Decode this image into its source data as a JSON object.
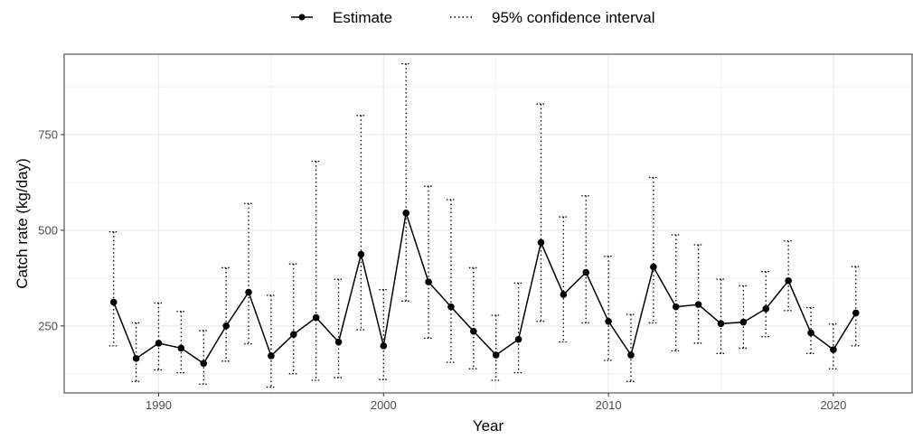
{
  "chart_data": {
    "type": "line",
    "title": "",
    "xlabel": "Year",
    "ylabel": "Catch rate (kg/day)",
    "xlim": [
      1985.8,
      2023.5
    ],
    "ylim": [
      75,
      960
    ],
    "x_ticks": [
      1990,
      2000,
      2010,
      2020
    ],
    "y_ticks": [
      250,
      500,
      750
    ],
    "grid": true,
    "legend_position": "top",
    "series": [
      {
        "name": "Estimate",
        "color": "#000000",
        "style": "line-with-points",
        "x": [
          1988,
          1989,
          1990,
          1991,
          1992,
          1993,
          1994,
          1995,
          1996,
          1997,
          1998,
          1999,
          2000,
          2001,
          2002,
          2003,
          2004,
          2005,
          2006,
          2007,
          2008,
          2009,
          2010,
          2011,
          2012,
          2013,
          2014,
          2015,
          2016,
          2017,
          2018,
          2019,
          2020,
          2021
        ],
        "values": [
          312,
          165,
          205,
          192,
          152,
          250,
          338,
          172,
          228,
          272,
          208,
          437,
          198,
          545,
          365,
          300,
          236,
          174,
          215,
          468,
          332,
          390,
          262,
          174,
          404,
          300,
          306,
          256,
          260,
          295,
          368,
          232,
          188,
          284
        ]
      },
      {
        "name": "95% confidence interval",
        "color": "#000000",
        "style": "dotted-errorbar",
        "x": [
          1988,
          1989,
          1990,
          1991,
          1992,
          1993,
          1994,
          1995,
          1996,
          1997,
          1998,
          1999,
          2000,
          2001,
          2002,
          2003,
          2004,
          2005,
          2006,
          2007,
          2008,
          2009,
          2010,
          2011,
          2012,
          2013,
          2014,
          2015,
          2016,
          2017,
          2018,
          2019,
          2020,
          2021
        ],
        "lower": [
          198,
          105,
          135,
          128,
          98,
          158,
          203,
          90,
          125,
          108,
          115,
          240,
          110,
          315,
          218,
          155,
          138,
          108,
          128,
          262,
          208,
          258,
          160,
          105,
          258,
          185,
          205,
          178,
          192,
          222,
          290,
          178,
          138,
          198
        ],
        "upper": [
          496,
          258,
          310,
          288,
          238,
          402,
          570,
          330,
          412,
          680,
          372,
          800,
          345,
          935,
          615,
          580,
          402,
          278,
          362,
          830,
          535,
          590,
          432,
          280,
          638,
          488,
          462,
          372,
          355,
          392,
          472,
          298,
          255,
          405
        ]
      }
    ]
  }
}
